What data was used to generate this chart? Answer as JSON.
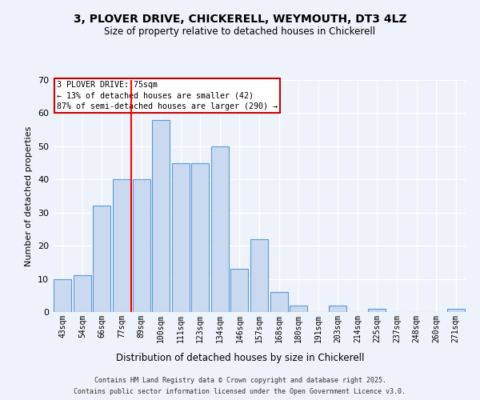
{
  "title_line1": "3, PLOVER DRIVE, CHICKERELL, WEYMOUTH, DT3 4LZ",
  "title_line2": "Size of property relative to detached houses in Chickerell",
  "xlabel": "Distribution of detached houses by size in Chickerell",
  "ylabel": "Number of detached properties",
  "categories": [
    "43sqm",
    "54sqm",
    "66sqm",
    "77sqm",
    "89sqm",
    "100sqm",
    "111sqm",
    "123sqm",
    "134sqm",
    "146sqm",
    "157sqm",
    "168sqm",
    "180sqm",
    "191sqm",
    "203sqm",
    "214sqm",
    "225sqm",
    "237sqm",
    "248sqm",
    "260sqm",
    "271sqm"
  ],
  "values": [
    10,
    11,
    32,
    40,
    40,
    58,
    45,
    45,
    50,
    13,
    22,
    6,
    2,
    0,
    2,
    0,
    1,
    0,
    0,
    0,
    1
  ],
  "bar_color": "#c9d9ef",
  "bar_edge_color": "#5b9bd5",
  "background_color": "#eef2fa",
  "grid_color": "#ffffff",
  "red_line_index": 3.5,
  "annotation_text": "3 PLOVER DRIVE: 75sqm\n← 13% of detached houses are smaller (42)\n87% of semi-detached houses are larger (290) →",
  "annotation_box_color": "#ffffff",
  "annotation_box_edge_color": "#cc0000",
  "ylim": [
    0,
    70
  ],
  "yticks": [
    0,
    10,
    20,
    30,
    40,
    50,
    60,
    70
  ],
  "footnote_line1": "Contains HM Land Registry data © Crown copyright and database right 2025.",
  "footnote_line2": "Contains public sector information licensed under the Open Government Licence v3.0."
}
